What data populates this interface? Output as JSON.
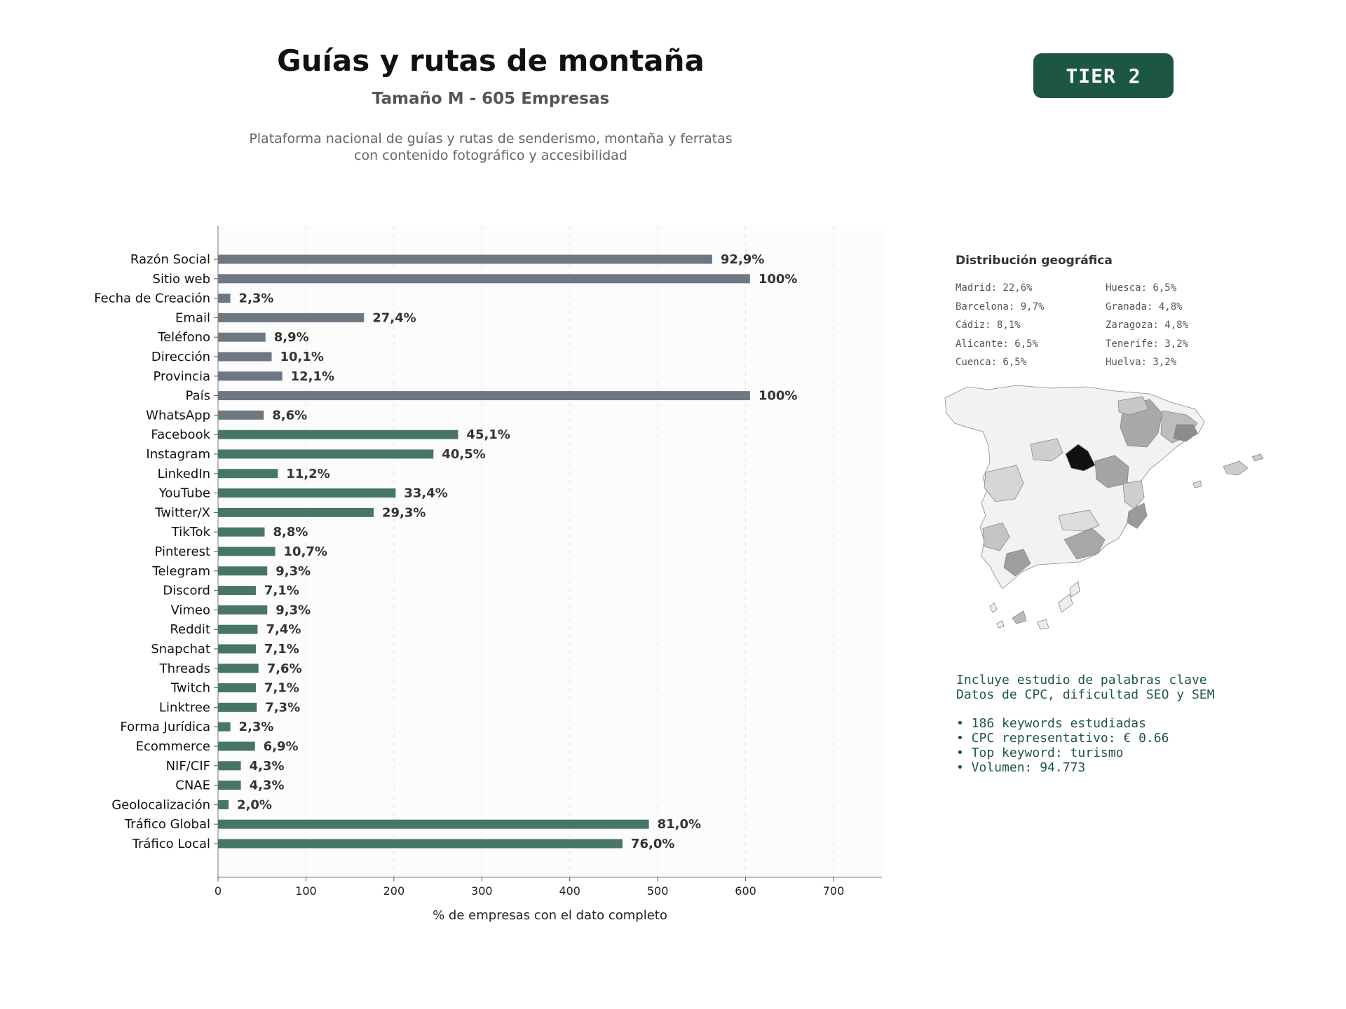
{
  "header": {
    "title": "Guías y rutas de montaña",
    "subtitle": "Tamaño M - 605 Empresas",
    "description_lines": [
      "Plataforma nacional de guías y rutas de senderismo, montaña y ferratas",
      "con contenido fotográfico y accesibilidad"
    ]
  },
  "badge": {
    "label": "TIER 2",
    "color": "#1e5741"
  },
  "chart_data": {
    "type": "bar",
    "orientation": "horizontal",
    "xlabel": "% de empresas con el dato completo",
    "xlim": [
      0,
      755
    ],
    "xticks": [
      0,
      100,
      200,
      300,
      400,
      500,
      600,
      700
    ],
    "grid": "vertical dashed",
    "colors": {
      "basic": "#6e7883",
      "digital": "#477664"
    },
    "categories": [
      "Razón Social",
      "Sitio web",
      "Fecha de Creación",
      "Email",
      "Teléfono",
      "Dirección",
      "Provincia",
      "País",
      "WhatsApp",
      "Facebook",
      "Instagram",
      "LinkedIn",
      "YouTube",
      "Twitter/X",
      "TikTok",
      "Pinterest",
      "Telegram",
      "Discord",
      "Vimeo",
      "Reddit",
      "Snapchat",
      "Threads",
      "Twitch",
      "Linktree",
      "Forma Jurídica",
      "Ecommerce",
      "NIF/CIF",
      "CNAE",
      "Geolocalización",
      "Tráfico Global",
      "Tráfico Local"
    ],
    "values": [
      562,
      605,
      14,
      166,
      54,
      61,
      73,
      605,
      52,
      273,
      245,
      68,
      202,
      177,
      53,
      65,
      56,
      43,
      56,
      45,
      43,
      46,
      43,
      44,
      14,
      42,
      26,
      26,
      12,
      490,
      460
    ],
    "labels": [
      "92,9%",
      "100%",
      "2,3%",
      "27,4%",
      "8,9%",
      "10,1%",
      "12,1%",
      "100%",
      "8,6%",
      "45,1%",
      "40,5%",
      "11,2%",
      "33,4%",
      "29,3%",
      "8,8%",
      "10,7%",
      "9,3%",
      "7,1%",
      "9,3%",
      "7,4%",
      "7,1%",
      "7,6%",
      "7,1%",
      "7,3%",
      "2,3%",
      "6,9%",
      "4,3%",
      "4,3%",
      "2,0%",
      "81,0%",
      "76,0%"
    ],
    "groups": [
      "basic",
      "basic",
      "basic",
      "basic",
      "basic",
      "basic",
      "basic",
      "basic",
      "basic",
      "digital",
      "digital",
      "digital",
      "digital",
      "digital",
      "digital",
      "digital",
      "digital",
      "digital",
      "digital",
      "digital",
      "digital",
      "digital",
      "digital",
      "digital",
      "digital",
      "digital",
      "digital",
      "digital",
      "digital",
      "digital",
      "digital"
    ]
  },
  "geo": {
    "title": "Distribución geográfica",
    "items": [
      "Madrid: 22,6%",
      "Huesca: 6,5%",
      "Barcelona: 9,7%",
      "Granada: 4,8%",
      "Cádiz: 8,1%",
      "Zaragoza: 4,8%",
      "Alicante: 6,5%",
      "Tenerife: 3,2%",
      "Cuenca: 6,5%",
      "Huelva: 3,2%"
    ]
  },
  "keywords": {
    "intro": [
      "Incluye estudio de palabras clave",
      "Datos de CPC, dificultad SEO y SEM"
    ],
    "bullets": [
      "• 186 keywords estudiadas",
      "• CPC representativo: € 0.66",
      "• Top keyword: turismo",
      "• Volumen: 94.773"
    ]
  }
}
